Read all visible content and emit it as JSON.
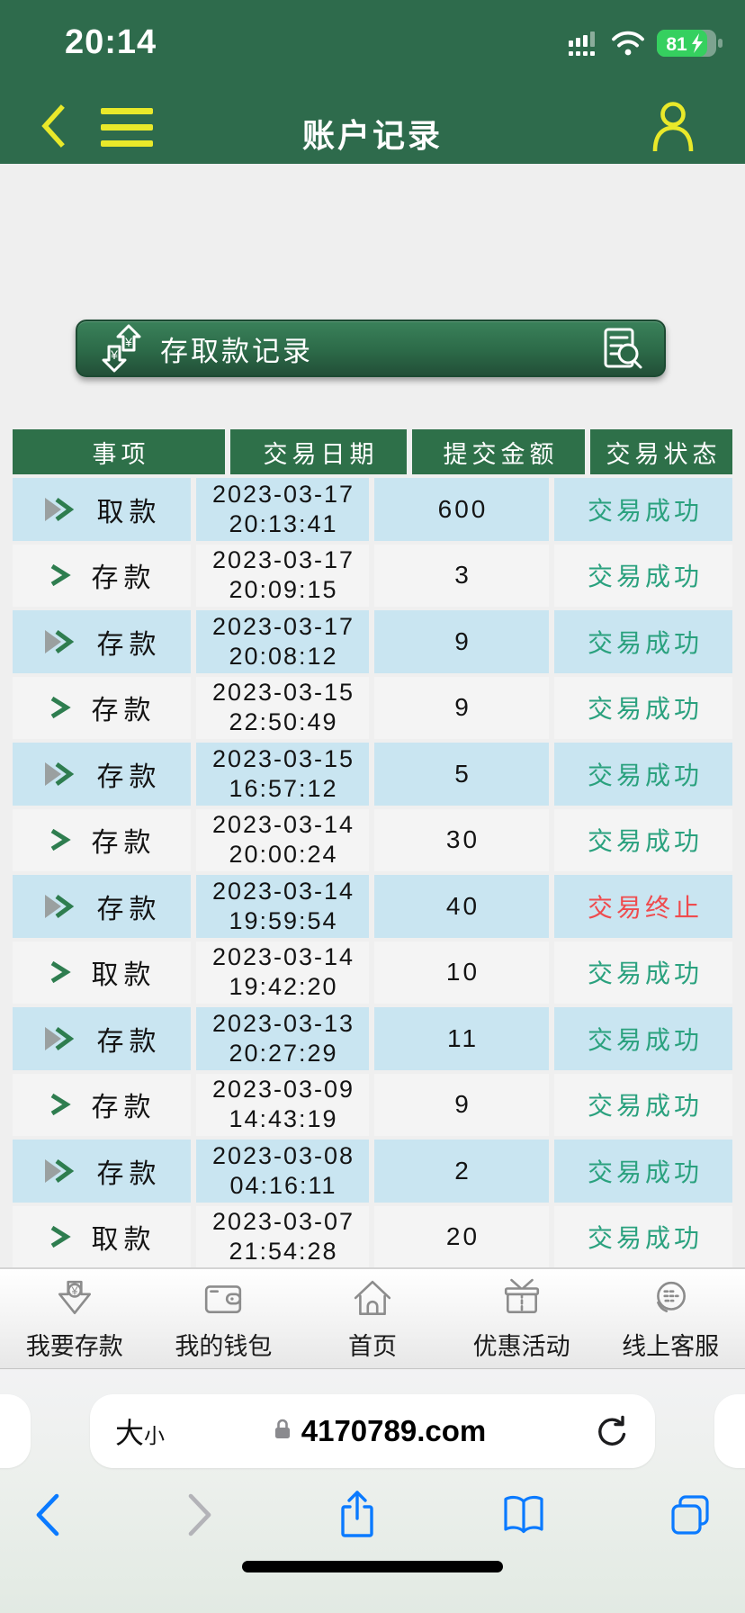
{
  "status_bar": {
    "time": "20:14",
    "battery": "81"
  },
  "app_header": {
    "title": "账户记录"
  },
  "banner": {
    "title": "存取款记录"
  },
  "table": {
    "headers": [
      "事项",
      "交易日期",
      "提交金额",
      "交易状态"
    ],
    "rows": [
      {
        "item": "取款",
        "date": "2023-03-17",
        "time": "20:13:41",
        "amount": "600",
        "status": "交易成功",
        "ok": true
      },
      {
        "item": "存款",
        "date": "2023-03-17",
        "time": "20:09:15",
        "amount": "3",
        "status": "交易成功",
        "ok": true
      },
      {
        "item": "存款",
        "date": "2023-03-17",
        "time": "20:08:12",
        "amount": "9",
        "status": "交易成功",
        "ok": true
      },
      {
        "item": "存款",
        "date": "2023-03-15",
        "time": "22:50:49",
        "amount": "9",
        "status": "交易成功",
        "ok": true
      },
      {
        "item": "存款",
        "date": "2023-03-15",
        "time": "16:57:12",
        "amount": "5",
        "status": "交易成功",
        "ok": true
      },
      {
        "item": "存款",
        "date": "2023-03-14",
        "time": "20:00:24",
        "amount": "30",
        "status": "交易成功",
        "ok": true
      },
      {
        "item": "存款",
        "date": "2023-03-14",
        "time": "19:59:54",
        "amount": "40",
        "status": "交易终止",
        "ok": false
      },
      {
        "item": "取款",
        "date": "2023-03-14",
        "time": "19:42:20",
        "amount": "10",
        "status": "交易成功",
        "ok": true
      },
      {
        "item": "存款",
        "date": "2023-03-13",
        "time": "20:27:29",
        "amount": "11",
        "status": "交易成功",
        "ok": true
      },
      {
        "item": "存款",
        "date": "2023-03-09",
        "time": "14:43:19",
        "amount": "9",
        "status": "交易成功",
        "ok": true
      },
      {
        "item": "存款",
        "date": "2023-03-08",
        "time": "04:16:11",
        "amount": "2",
        "status": "交易成功",
        "ok": true
      },
      {
        "item": "取款",
        "date": "2023-03-07",
        "time": "21:54:28",
        "amount": "20",
        "status": "交易成功",
        "ok": true
      }
    ]
  },
  "bottom_nav": {
    "items": [
      {
        "id": "deposit",
        "icon": "deposit-arrow-icon",
        "label": "我要存款"
      },
      {
        "id": "wallet",
        "icon": "wallet-icon",
        "label": "我的钱包"
      },
      {
        "id": "home",
        "icon": "home-icon",
        "label": "首页"
      },
      {
        "id": "promo",
        "icon": "gift-icon",
        "label": "优惠活动"
      },
      {
        "id": "service",
        "icon": "customer-service-icon",
        "label": "线上客服"
      }
    ]
  },
  "browser": {
    "text_size_large": "大",
    "text_size_small": "小",
    "url": "4170789.com"
  },
  "colors": {
    "theme_green": "#2e6b4c",
    "table_header_green": "#2e7049",
    "banner_green": "#2c6a48",
    "row_blue": "#c9e5f1",
    "row_gray": "#f4f4f4",
    "accent_yellow": "#e9e92a",
    "status_success": "#2aa17e",
    "status_terminated": "#ef4b4e",
    "safari_blue": "#0a7aff",
    "battery_green": "#35d05f"
  }
}
